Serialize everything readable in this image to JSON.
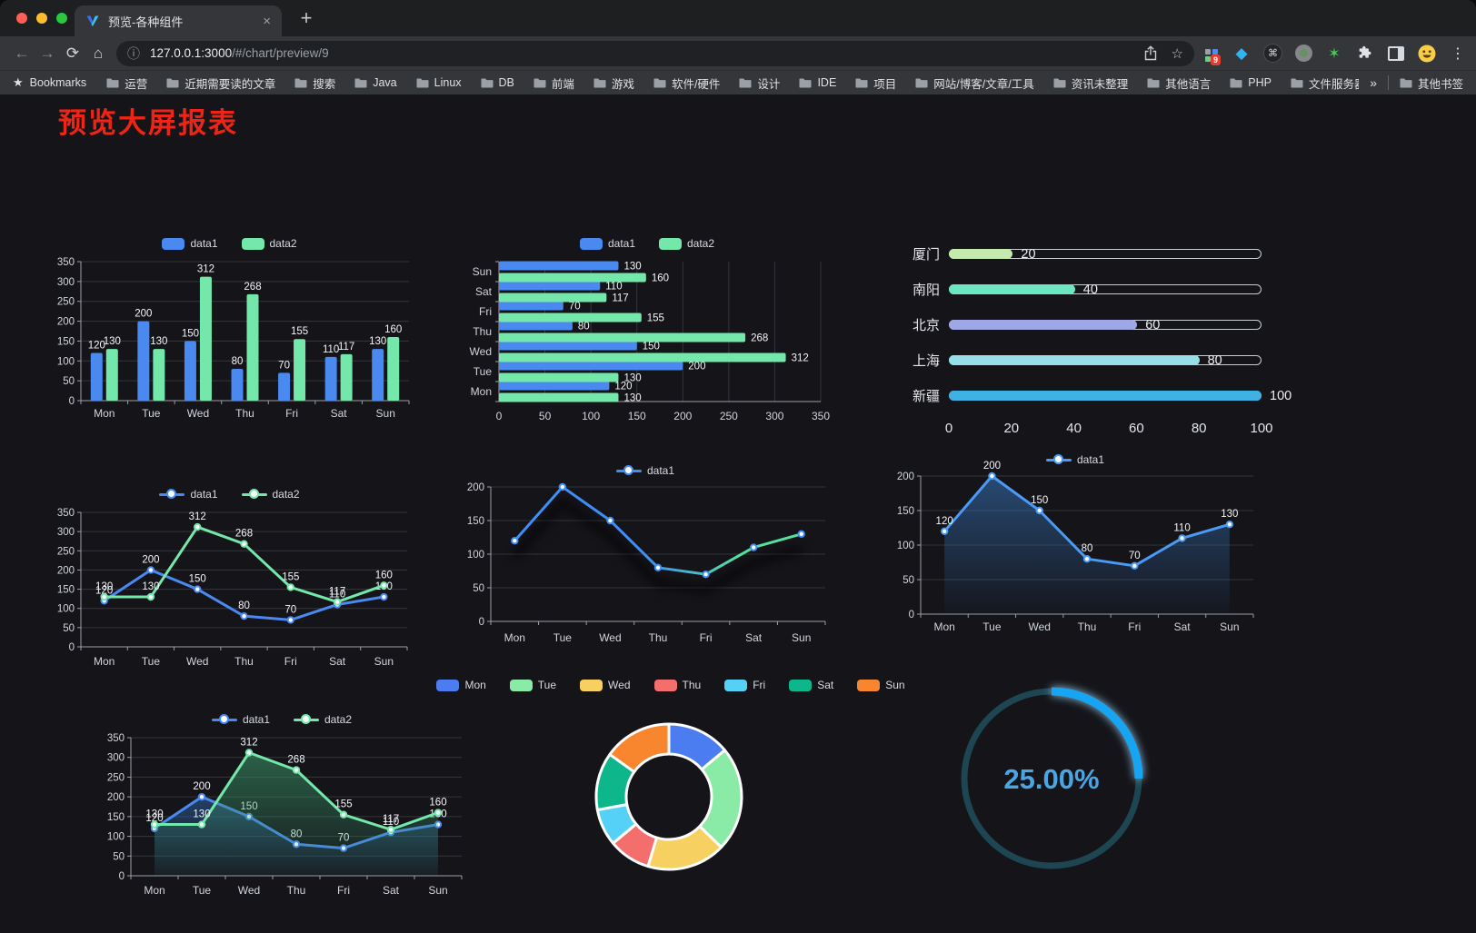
{
  "browser": {
    "tab": {
      "title": "预览-各种组件",
      "close_glyph": "×",
      "new_tab_glyph": "+"
    },
    "url": {
      "host": "127.0.0.1:3000",
      "path": "/#/chart/preview/9"
    },
    "icons": {
      "back": "←",
      "forward": "→",
      "reload": "⟳",
      "home": "⌂",
      "info": "ⓘ",
      "star_outline": "☆",
      "bookmarks_star": "★",
      "menu": "⋮",
      "cmd": "⌘",
      "gem": "◆",
      "sparkle": "✶"
    },
    "extensions": {
      "badge": "9"
    },
    "bookmarks": {
      "label": "Bookmarks",
      "items": [
        "运营",
        "近期需要读的文章",
        "搜索",
        "Java",
        "Linux",
        "DB",
        "前端",
        "游戏",
        "软件/硬件",
        "设计",
        "IDE",
        "项目",
        "网站/博客/文章/工具",
        "资讯未整理",
        "其他语言",
        "PHP",
        "文件服务器"
      ],
      "overflow_glyph": "»",
      "other_label": "其他书签"
    }
  },
  "page": {
    "title": "预览大屏报表"
  },
  "chart_data": [
    {
      "id": "grouped-bar",
      "type": "bar",
      "categories": [
        "Mon",
        "Tue",
        "Wed",
        "Thu",
        "Fri",
        "Sat",
        "Sun"
      ],
      "series": [
        {
          "name": "data1",
          "color": "#4a89f0",
          "values": [
            120,
            200,
            150,
            80,
            70,
            110,
            130
          ]
        },
        {
          "name": "data2",
          "color": "#74e8ab",
          "values": [
            130,
            130,
            312,
            268,
            155,
            117,
            160
          ]
        }
      ],
      "ylim": [
        0,
        350
      ],
      "ytick_step": 50,
      "value_labels": true,
      "legend_position": "top",
      "grid": true
    },
    {
      "id": "grouped-bar-horizontal",
      "type": "bar-horizontal",
      "categories": [
        "Mon",
        "Tue",
        "Wed",
        "Thu",
        "Fri",
        "Sat",
        "Sun"
      ],
      "display_order": "Sun at top, Mon at bottom",
      "series": [
        {
          "name": "data1",
          "color": "#4a89f0",
          "values": [
            120,
            200,
            150,
            80,
            70,
            110,
            130
          ]
        },
        {
          "name": "data2",
          "color": "#74e8ab",
          "values": [
            130,
            130,
            312,
            268,
            155,
            117,
            160
          ]
        }
      ],
      "xlim": [
        0,
        350
      ],
      "xtick_step": 50,
      "value_labels": true,
      "legend_position": "top",
      "grid": true
    },
    {
      "id": "city-progress",
      "type": "progress-bars",
      "items": [
        {
          "label": "厦门",
          "value": 20,
          "color": "#c4ebad"
        },
        {
          "label": "南阳",
          "value": 40,
          "color": "#6be6c1"
        },
        {
          "label": "北京",
          "value": 60,
          "color": "#a0a7e6"
        },
        {
          "label": "上海",
          "value": 80,
          "color": "#96dee8"
        },
        {
          "label": "新疆",
          "value": 100,
          "color": "#3fb1e3"
        }
      ],
      "xlim": [
        0,
        100
      ],
      "xticks": [
        "0",
        "20",
        "40",
        "60",
        "80",
        "100"
      ]
    },
    {
      "id": "two-series-line",
      "type": "line",
      "categories": [
        "Mon",
        "Tue",
        "Wed",
        "Thu",
        "Fri",
        "Sat",
        "Sun"
      ],
      "series": [
        {
          "name": "data1",
          "color": "#4a89f0",
          "values": [
            120,
            200,
            150,
            80,
            70,
            110,
            130
          ]
        },
        {
          "name": "data2",
          "color": "#74e8ab",
          "values": [
            130,
            130,
            312,
            268,
            155,
            117,
            160
          ]
        }
      ],
      "ylim": [
        0,
        350
      ],
      "ytick_step": 50,
      "value_labels": true,
      "legend_position": "top",
      "grid": true
    },
    {
      "id": "gradient-line",
      "type": "line",
      "categories": [
        "Mon",
        "Tue",
        "Wed",
        "Thu",
        "Fri",
        "Sat",
        "Sun"
      ],
      "series": [
        {
          "name": "data1",
          "color": "#3e8ef7",
          "gradient": [
            "#3e8ef7",
            "#3e8ef7",
            "#55dfa0",
            "#55dfa0"
          ],
          "values": [
            120,
            200,
            150,
            80,
            70,
            110,
            130
          ]
        }
      ],
      "ylim": [
        0,
        200
      ],
      "ytick_step": 50,
      "value_labels": false,
      "shadow": true,
      "legend_position": "top",
      "grid": true
    },
    {
      "id": "single-area",
      "type": "area",
      "categories": [
        "Mon",
        "Tue",
        "Wed",
        "Thu",
        "Fri",
        "Sat",
        "Sun"
      ],
      "series": [
        {
          "name": "data1",
          "color": "#4a9bf5",
          "area": [
            "rgba(54,110,176,0.60)",
            "rgba(54,110,176,0.03)"
          ],
          "values": [
            120,
            200,
            150,
            80,
            70,
            110,
            130
          ]
        }
      ],
      "ylim": [
        0,
        200
      ],
      "ytick_step": 50,
      "value_labels": true,
      "legend_position": "top",
      "grid": true
    },
    {
      "id": "two-series-area",
      "type": "area",
      "categories": [
        "Mon",
        "Tue",
        "Wed",
        "Thu",
        "Fri",
        "Sat",
        "Sun"
      ],
      "series": [
        {
          "name": "data1",
          "color": "#4a89f0",
          "area": [
            "rgba(47,100,165,0.55)",
            "rgba(47,100,165,0.05)"
          ],
          "values": [
            120,
            200,
            150,
            80,
            70,
            110,
            130
          ]
        },
        {
          "name": "data2",
          "color": "#74e8ab",
          "area": [
            "rgba(58,148,104,0.60)",
            "rgba(58,148,104,0.05)"
          ],
          "values": [
            130,
            130,
            312,
            268,
            155,
            117,
            160
          ]
        }
      ],
      "ylim": [
        0,
        350
      ],
      "ytick_step": 50,
      "value_labels": true,
      "legend_position": "top",
      "grid": true
    },
    {
      "id": "weekday-donut",
      "type": "pie",
      "shape": "donut",
      "categories": [
        "Mon",
        "Tue",
        "Wed",
        "Thu",
        "Fri",
        "Sat",
        "Sun"
      ],
      "values": [
        120,
        200,
        150,
        80,
        70,
        110,
        130
      ],
      "colors": [
        "#4b7df0",
        "#8aeba6",
        "#f6d162",
        "#f56e6e",
        "#55d1f7",
        "#0db78b",
        "#f8862e"
      ],
      "border_color": "#ffffff",
      "start_angle_deg": -90,
      "clockwise": true,
      "legend_position": "top"
    },
    {
      "id": "percent-gauge",
      "type": "gauge",
      "value": 25,
      "max": 100,
      "label": "25.00%",
      "color": "#14a5f3",
      "track_color": "#1d4552",
      "text_color": "#49a5e3"
    }
  ]
}
